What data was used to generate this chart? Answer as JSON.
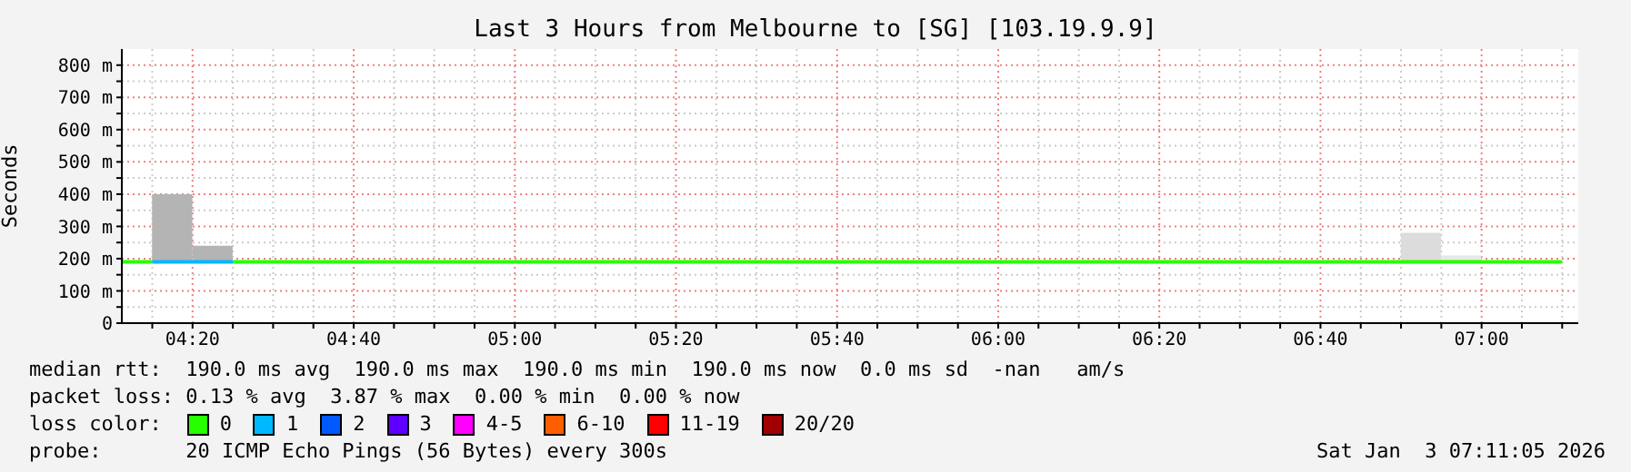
{
  "chart_data": {
    "type": "line",
    "title": "Last 3 Hours from Melbourne to [SG] [103.19.9.9]",
    "ylabel": "Seconds",
    "xlim": [
      4.187,
      7.2
    ],
    "xticks": [
      {
        "value": 4.25,
        "label": null
      },
      {
        "value": 4.3333,
        "label": "04:20"
      },
      {
        "value": 4.4167,
        "label": null
      },
      {
        "value": 4.5,
        "label": null
      },
      {
        "value": 4.5833,
        "label": null
      },
      {
        "value": 4.6667,
        "label": "04:40"
      },
      {
        "value": 4.75,
        "label": null
      },
      {
        "value": 4.8333,
        "label": null
      },
      {
        "value": 4.9167,
        "label": null
      },
      {
        "value": 5,
        "label": "05:00"
      },
      {
        "value": 5.0833,
        "label": null
      },
      {
        "value": 5.1667,
        "label": null
      },
      {
        "value": 5.25,
        "label": null
      },
      {
        "value": 5.3333,
        "label": "05:20"
      },
      {
        "value": 5.4167,
        "label": null
      },
      {
        "value": 5.5,
        "label": null
      },
      {
        "value": 5.5833,
        "label": null
      },
      {
        "value": 5.6667,
        "label": "05:40"
      },
      {
        "value": 5.75,
        "label": null
      },
      {
        "value": 5.8333,
        "label": null
      },
      {
        "value": 5.9167,
        "label": null
      },
      {
        "value": 6,
        "label": "06:00"
      },
      {
        "value": 6.0833,
        "label": null
      },
      {
        "value": 6.1667,
        "label": null
      },
      {
        "value": 6.25,
        "label": null
      },
      {
        "value": 6.3333,
        "label": "06:20"
      },
      {
        "value": 6.4167,
        "label": null
      },
      {
        "value": 6.5,
        "label": null
      },
      {
        "value": 6.5833,
        "label": null
      },
      {
        "value": 6.6667,
        "label": "06:40"
      },
      {
        "value": 6.75,
        "label": null
      },
      {
        "value": 6.8333,
        "label": null
      },
      {
        "value": 6.9167,
        "label": null
      },
      {
        "value": 7,
        "label": "07:00"
      },
      {
        "value": 7.0833,
        "label": null
      },
      {
        "value": 7.1667,
        "label": null
      }
    ],
    "ylim": [
      0,
      850
    ],
    "yticks": [
      0,
      {
        "value": 50,
        "label": null
      },
      {
        "value": 100,
        "label": "100 m"
      },
      {
        "value": 150,
        "label": null
      },
      {
        "value": 200,
        "label": "200 m"
      },
      {
        "value": 250,
        "label": null
      },
      {
        "value": 300,
        "label": "300 m"
      },
      {
        "value": 350,
        "label": null
      },
      {
        "value": 400,
        "label": "400 m"
      },
      {
        "value": 450,
        "label": null
      },
      {
        "value": 500,
        "label": "500 m"
      },
      {
        "value": 550,
        "label": null
      },
      {
        "value": 600,
        "label": "600 m"
      },
      {
        "value": 650,
        "label": null
      },
      {
        "value": 700,
        "label": "700 m"
      },
      {
        "value": 750,
        "label": null
      },
      {
        "value": 800,
        "label": "800 m"
      }
    ],
    "grid": true,
    "legend": "bottom",
    "legend_title": "loss color:",
    "marker": "none",
    "annotations": [
      "median rtt:  190.0 ms avg  190.0 ms max  190.0 ms min  190.0 ms now  0.0 ms sd  -nan   am/s",
      "packet loss: 0.13 % avg  3.87 % max  0.00 % min  0.00 % now",
      "probe:       20 ICMP Echo Pings (56 Bytes) every 300s",
      "Sat Jan  3 07:11:05 2026"
    ],
    "series": [
      {
        "type": "bar",
        "color": "#b4b4b4",
        "colors": [
          "#b4b4b4",
          "#b4b4b4",
          "#dcdcdc",
          "#e8e8e8"
        ],
        "x": [
          4.2917,
          4.375,
          6.875,
          6.9583
        ],
        "base": [
          190,
          190,
          190,
          190
        ],
        "values": [
          210,
          50,
          90,
          20
        ]
      },
      {
        "name": "0",
        "color": "#26ff00",
        "x": [
          4.187,
          4.25,
          4.26,
          4.4167,
          7.1667
        ],
        "values": [
          190,
          190,
          null,
          190,
          190
        ]
      },
      {
        "name": "1",
        "color": "#00b8ff",
        "x": [
          4.25,
          4.4167
        ],
        "values": [
          190,
          190
        ]
      },
      {
        "name": "2",
        "color": "#0059ff"
      },
      {
        "name": "3",
        "color": "#5e00ff"
      },
      {
        "name": "4-5",
        "color": "#ff00ff"
      },
      {
        "name": "6-10",
        "color": "#ff5e00"
      },
      {
        "name": "11-19",
        "color": "#ff0000"
      },
      {
        "name": "20/20",
        "color": "#a10000"
      }
    ]
  }
}
